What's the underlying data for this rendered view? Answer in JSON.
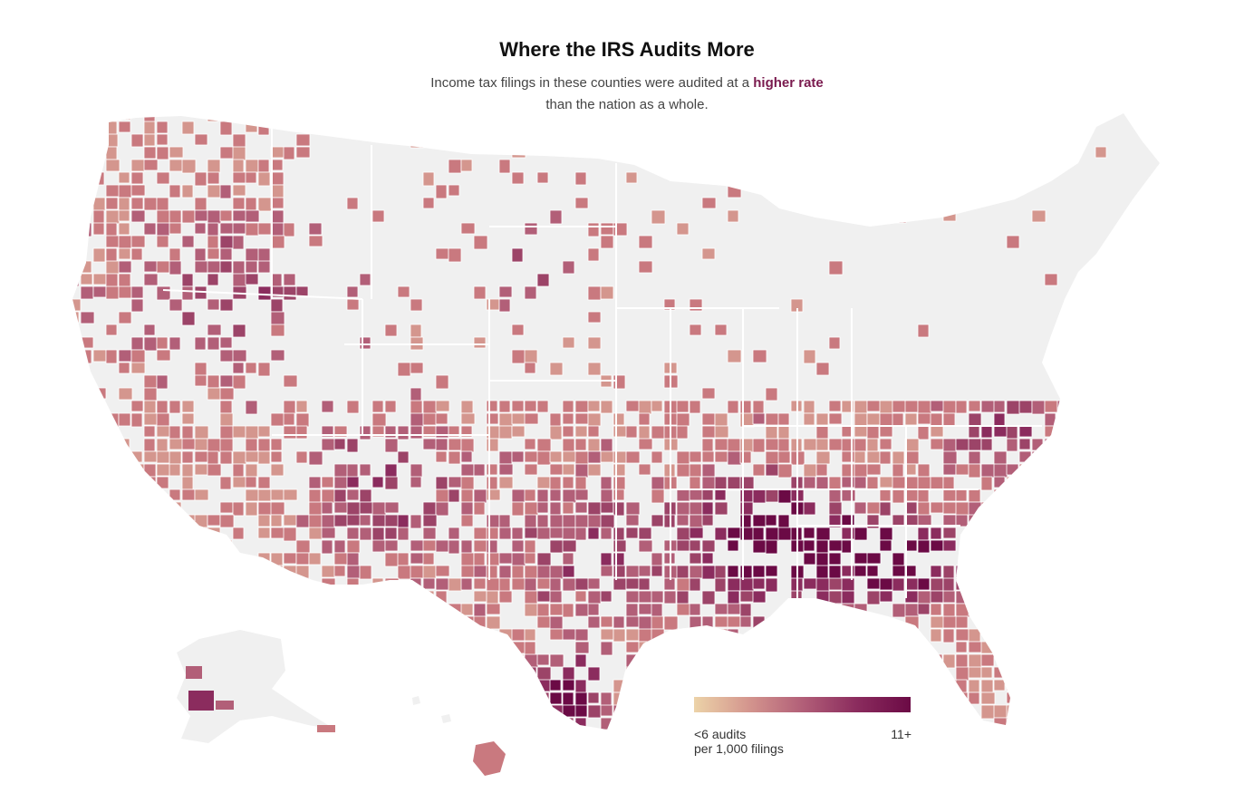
{
  "title": "Where the IRS Audits More",
  "subtitle": {
    "before": "Income tax filings in these counties were audited at a",
    "emphasis": "higher rate",
    "after": "than the nation as a whole."
  },
  "legend": {
    "low_label_line1": "<6 audits",
    "low_label_line2": "per 1,000 filings",
    "high_label": "11+",
    "gradient": [
      "#ecd3a8",
      "#d4968e",
      "#b25f78",
      "#8b2c5e",
      "#6b0a45"
    ]
  },
  "colors": {
    "background": "#ffffff",
    "no_data_land": "#f0f0f0",
    "border": "#ffffff",
    "accent": "#7a1a4e"
  },
  "regions": [
    {
      "name": "contiguous-us"
    },
    {
      "name": "alaska"
    },
    {
      "name": "hawaii"
    }
  ]
}
